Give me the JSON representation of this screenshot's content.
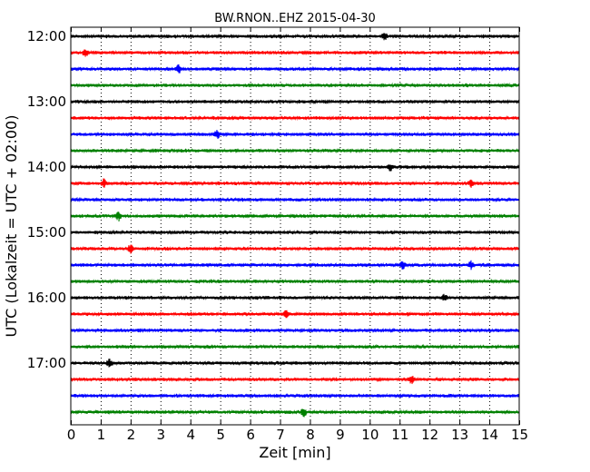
{
  "chart_data": {
    "type": "line",
    "subtype": "dayplot-seismogram",
    "title": "BW.RNON..EHZ 2015-04-30",
    "xlabel": "Zeit  [min]",
    "ylabel": "UTC (Lokalzeit = UTC + 02:00)",
    "xlim": [
      0,
      15
    ],
    "x_ticks": [
      0,
      1,
      2,
      3,
      4,
      5,
      6,
      7,
      8,
      9,
      10,
      11,
      12,
      13,
      14,
      15
    ],
    "y_tick_labels": [
      "12:00",
      "13:00",
      "14:00",
      "15:00",
      "16:00",
      "17:00"
    ],
    "grid": {
      "x": true,
      "y": false,
      "style": "dotted"
    },
    "colors": [
      "#000000",
      "#ff0000",
      "#0000ff",
      "#008000"
    ],
    "rows": [
      {
        "start": "12:00",
        "events": [
          10.5
        ]
      },
      {
        "start": "12:15",
        "events": [
          0.5
        ]
      },
      {
        "start": "12:30",
        "events": [
          3.6
        ]
      },
      {
        "start": "12:45",
        "events": []
      },
      {
        "start": "13:00",
        "events": []
      },
      {
        "start": "13:15",
        "events": []
      },
      {
        "start": "13:30",
        "events": [
          4.9
        ]
      },
      {
        "start": "13:45",
        "events": []
      },
      {
        "start": "14:00",
        "events": [
          10.7
        ]
      },
      {
        "start": "14:15",
        "events": [
          1.1,
          13.4
        ]
      },
      {
        "start": "14:30",
        "events": []
      },
      {
        "start": "14:45",
        "events": [
          1.6
        ]
      },
      {
        "start": "15:00",
        "events": []
      },
      {
        "start": "15:15",
        "events": [
          2.0
        ]
      },
      {
        "start": "15:30",
        "events": [
          11.1,
          13.4
        ]
      },
      {
        "start": "15:45",
        "events": []
      },
      {
        "start": "16:00",
        "events": [
          12.5
        ]
      },
      {
        "start": "16:15",
        "events": [
          7.2
        ]
      },
      {
        "start": "16:30",
        "events": []
      },
      {
        "start": "16:45",
        "events": []
      },
      {
        "start": "17:00",
        "events": [
          1.3
        ]
      },
      {
        "start": "17:15",
        "events": [
          11.4
        ]
      },
      {
        "start": "17:30",
        "events": []
      },
      {
        "start": "17:45",
        "events": [
          7.8
        ]
      }
    ]
  }
}
